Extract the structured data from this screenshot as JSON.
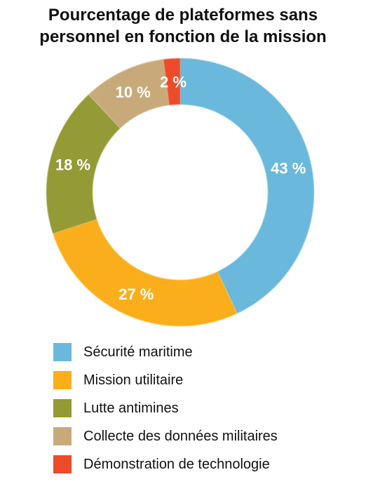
{
  "chart_data": {
    "type": "pie",
    "title_lines": [
      "Pourcentage de plateformes sans",
      "personnel en fonction de la mission"
    ],
    "categories": [
      "Sécurité maritime",
      "Mission utilitaire",
      "Lutte antimines",
      "Collecte des données militaires",
      "Démonstration de technologie"
    ],
    "values": [
      43,
      27,
      18,
      10,
      2
    ],
    "data_labels": [
      "43 %",
      "27 %",
      "18 %",
      "10 %",
      "2 %"
    ],
    "colors": [
      "#6bb8dc",
      "#fbae1c",
      "#949a35",
      "#c8aa7a",
      "#ee4b2b"
    ],
    "legend_position": "bottom-left"
  }
}
